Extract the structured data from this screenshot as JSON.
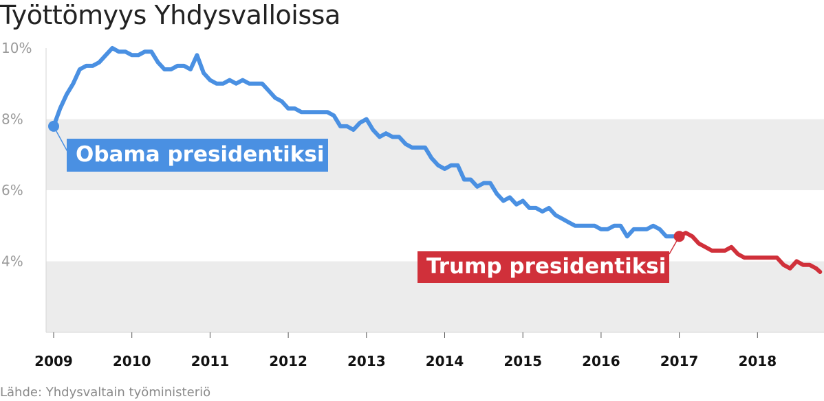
{
  "chart_data": {
    "type": "line",
    "title": "Työttömyys Yhdysvalloissa",
    "source": "Lähde: Yhdysvaltain työministeriö",
    "y_ticks": [
      "10%",
      "8%",
      "6%",
      "4%"
    ],
    "y_tick_values": [
      10,
      8,
      6,
      4
    ],
    "ylim": [
      2,
      10
    ],
    "x_ticks": [
      "2009",
      "2010",
      "2011",
      "2012",
      "2013",
      "2014",
      "2015",
      "2016",
      "2017",
      "2018"
    ],
    "x_tick_values": [
      2009,
      2010,
      2011,
      2012,
      2013,
      2014,
      2015,
      2016,
      2017,
      2018
    ],
    "xlim": [
      2009,
      2018.8
    ],
    "grid": "alternating horizontal bands",
    "series": [
      {
        "color": "#4a90e2",
        "x": [
          2009.0,
          2009.083,
          2009.167,
          2009.25,
          2009.333,
          2009.417,
          2009.5,
          2009.583,
          2009.667,
          2009.75,
          2009.833,
          2009.917,
          2010.0,
          2010.083,
          2010.167,
          2010.25,
          2010.333,
          2010.417,
          2010.5,
          2010.583,
          2010.667,
          2010.75,
          2010.833,
          2010.917,
          2011.0,
          2011.083,
          2011.167,
          2011.25,
          2011.333,
          2011.417,
          2011.5,
          2011.583,
          2011.667,
          2011.75,
          2011.833,
          2011.917,
          2012.0,
          2012.083,
          2012.167,
          2012.25,
          2012.333,
          2012.417,
          2012.5,
          2012.583,
          2012.667,
          2012.75,
          2012.833,
          2012.917,
          2013.0,
          2013.083,
          2013.167,
          2013.25,
          2013.333,
          2013.417,
          2013.5,
          2013.583,
          2013.667,
          2013.75,
          2013.833,
          2013.917,
          2014.0,
          2014.083,
          2014.167,
          2014.25,
          2014.333,
          2014.417,
          2014.5,
          2014.583,
          2014.667,
          2014.75,
          2014.833,
          2014.917,
          2015.0,
          2015.083,
          2015.167,
          2015.25,
          2015.333,
          2015.417,
          2015.5,
          2015.583,
          2015.667,
          2015.75,
          2015.833,
          2015.917,
          2016.0,
          2016.083,
          2016.167,
          2016.25,
          2016.333,
          2016.417,
          2016.5,
          2016.583,
          2016.667,
          2016.75,
          2016.833,
          2016.917,
          2017.0
        ],
        "y": [
          7.8,
          8.3,
          8.7,
          9.0,
          9.4,
          9.5,
          9.5,
          9.6,
          9.8,
          10.0,
          9.9,
          9.9,
          9.8,
          9.8,
          9.9,
          9.9,
          9.6,
          9.4,
          9.4,
          9.5,
          9.5,
          9.4,
          9.8,
          9.3,
          9.1,
          9.0,
          9.0,
          9.1,
          9.0,
          9.1,
          9.0,
          9.0,
          9.0,
          8.8,
          8.6,
          8.5,
          8.3,
          8.3,
          8.2,
          8.2,
          8.2,
          8.2,
          8.2,
          8.1,
          7.8,
          7.8,
          7.7,
          7.9,
          8.0,
          7.7,
          7.5,
          7.6,
          7.5,
          7.5,
          7.3,
          7.2,
          7.2,
          7.2,
          6.9,
          6.7,
          6.6,
          6.7,
          6.7,
          6.3,
          6.3,
          6.1,
          6.2,
          6.2,
          5.9,
          5.7,
          5.8,
          5.6,
          5.7,
          5.5,
          5.5,
          5.4,
          5.5,
          5.3,
          5.2,
          5.1,
          5.0,
          5.0,
          5.0,
          5.0,
          4.9,
          4.9,
          5.0,
          5.0,
          4.7,
          4.9,
          4.9,
          4.9,
          5.0,
          4.9,
          4.7,
          4.7,
          4.7
        ]
      },
      {
        "color": "#d0303a",
        "x": [
          2017.0,
          2017.083,
          2017.167,
          2017.25,
          2017.333,
          2017.417,
          2017.5,
          2017.583,
          2017.667,
          2017.75,
          2017.833,
          2017.917,
          2018.0,
          2018.083,
          2018.167,
          2018.25,
          2018.333,
          2018.417,
          2018.5,
          2018.583,
          2018.667,
          2018.75,
          2018.8
        ],
        "y": [
          4.7,
          4.8,
          4.7,
          4.5,
          4.4,
          4.3,
          4.3,
          4.3,
          4.4,
          4.2,
          4.1,
          4.1,
          4.1,
          4.1,
          4.1,
          4.1,
          3.9,
          3.8,
          4.0,
          3.9,
          3.9,
          3.8,
          3.7
        ]
      }
    ],
    "annotations": [
      {
        "text": "Obama presidentiksi",
        "x": 2009.0,
        "y": 7.8,
        "color": "#4a90e2"
      },
      {
        "text": "Trump presidentiksi",
        "x": 2017.0,
        "y": 4.7,
        "color": "#d0303a"
      }
    ],
    "band_color": "#ececec",
    "axis_color": "#d6d6d6"
  }
}
